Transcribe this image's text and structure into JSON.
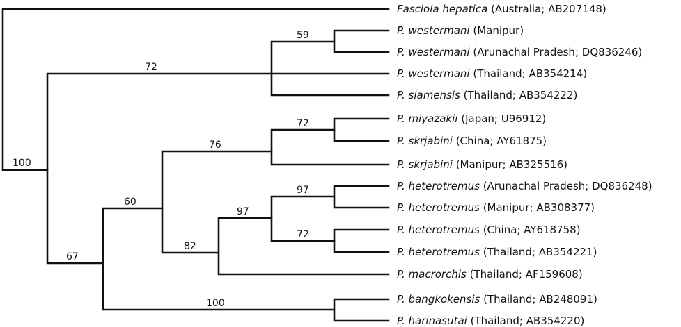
{
  "tree": {
    "taxa": [
      {
        "id": "t1",
        "species": "Fasciola hepatica",
        "detail": " (Australia; AB207148)"
      },
      {
        "id": "t2",
        "species": "P. westermani",
        "detail": " (Manipur)"
      },
      {
        "id": "t3",
        "species": "P. westermani",
        "detail": " (Arunachal Pradesh; DQ836246)"
      },
      {
        "id": "t4",
        "species": "P. westermani",
        "detail": " (Thailand; AB354214)"
      },
      {
        "id": "t5",
        "species": "P. siamensis",
        "detail": " (Thailand; AB354222)"
      },
      {
        "id": "t6",
        "species": "P. miyazakii",
        "detail": " (Japan; U96912)"
      },
      {
        "id": "t7",
        "species": "P. skrjabini",
        "detail": " (China; AY61875)"
      },
      {
        "id": "t8",
        "species": "P. skrjabini",
        "detail": " (Manipur; AB325516)"
      },
      {
        "id": "t9",
        "species": "P. heterotremus",
        "detail": " (Arunachal Pradesh; DQ836248)"
      },
      {
        "id": "t10",
        "species": "P. heterotremus",
        "detail": " (Manipur; AB308377)"
      },
      {
        "id": "t11",
        "species": "P. heterotremus",
        "detail": " (China; AY618758)"
      },
      {
        "id": "t12",
        "species": "P. heterotremus",
        "detail": " (Thailand; AB354221)"
      },
      {
        "id": "t13",
        "species": "P. macrorchis",
        "detail": " (Thailand; AF159608)"
      },
      {
        "id": "t14",
        "species": "P. bangkokensis",
        "detail": " (Thailand; AB248091)"
      },
      {
        "id": "t15",
        "species": "P. harinasutai",
        "detail": " (Thailand; AB354220)"
      }
    ],
    "support": {
      "root": "100",
      "westermani_group": "72",
      "westermani_manipur_arunachal": "59",
      "ingroup_rest": "67",
      "miya_hetero": "60",
      "miya_skrj": "76",
      "miya_skrjchina": "72",
      "hetero_macro": "82",
      "hetero_all": "97",
      "hetero_arun_manipur": "97",
      "hetero_china_thai": "72",
      "bangk_harin": "100"
    }
  }
}
